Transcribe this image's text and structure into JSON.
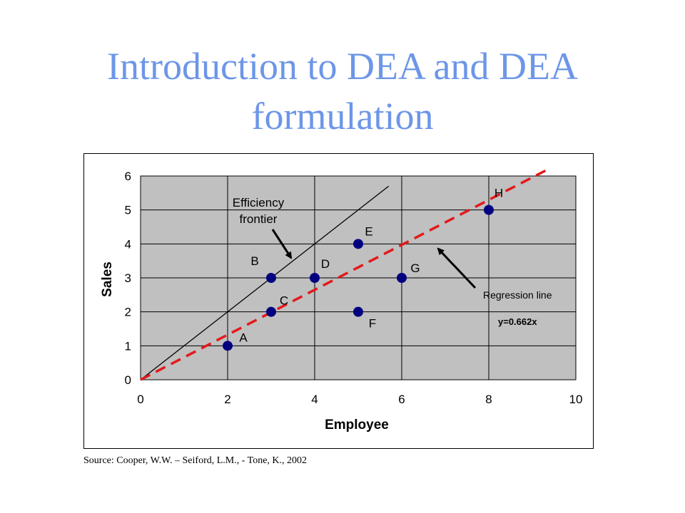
{
  "slide": {
    "title_line1": "Introduction to DEA and DEA",
    "title_line2": "formulation",
    "source": "Source: Cooper, W.W. – Seiford, L.M., - Tone, K., 2002"
  },
  "colors": {
    "title": "#6d96e8",
    "plot_bg": "#c0c0c0",
    "point": "#000080",
    "regression": "#e31a1c",
    "frontier": "#000000"
  },
  "chart_data": {
    "type": "scatter",
    "xlabel": "Employee",
    "ylabel": "Sales",
    "xlim": [
      0,
      10
    ],
    "ylim": [
      0,
      6
    ],
    "xticks": [
      0,
      2,
      4,
      6,
      8,
      10
    ],
    "yticks": [
      0,
      1,
      2,
      3,
      4,
      5,
      6
    ],
    "grid": true,
    "points": [
      {
        "label": "A",
        "x": 2,
        "y": 1
      },
      {
        "label": "B",
        "x": 3,
        "y": 3
      },
      {
        "label": "C",
        "x": 3,
        "y": 2
      },
      {
        "label": "D",
        "x": 4,
        "y": 3
      },
      {
        "label": "E",
        "x": 5,
        "y": 4
      },
      {
        "label": "F",
        "x": 5,
        "y": 2
      },
      {
        "label": "G",
        "x": 6,
        "y": 3
      },
      {
        "label": "H",
        "x": 8,
        "y": 5
      }
    ],
    "lines": {
      "frontier": {
        "slope": 1.0,
        "x_end": 5.7
      },
      "regression": {
        "slope": 0.662,
        "x_end": 9.3
      }
    },
    "annotations": {
      "frontier_line1": "Efficiency",
      "frontier_line2": "frontier",
      "regression": "Regression line",
      "equation": "y=0.662x"
    }
  }
}
